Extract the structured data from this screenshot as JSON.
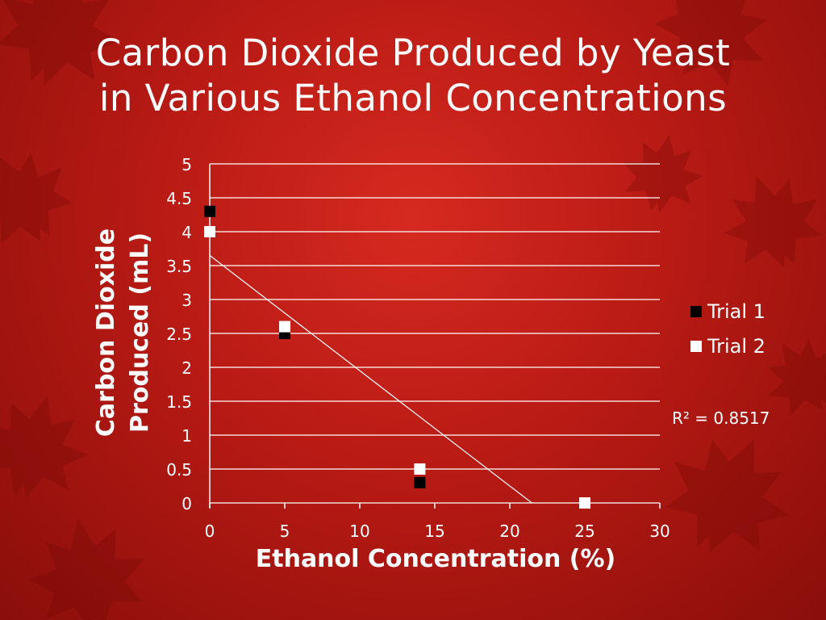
{
  "title_line1": "Carbon Dioxide Produced by Yeast",
  "title_line2": "in Various Ethanol Concentrations",
  "colors": {
    "background": "#c41e16",
    "trial1": "#000000",
    "trial2": "#ffffff",
    "text": "#ffffff"
  },
  "chart_data": {
    "type": "scatter",
    "title": "",
    "xlabel": "Ethanol Concentration (%)",
    "ylabel_line1": "Carbon Dioxide",
    "ylabel_line2": "Produced (mL)",
    "xlim": [
      0,
      30
    ],
    "ylim": [
      0,
      5
    ],
    "x_ticks": [
      0,
      5,
      10,
      15,
      20,
      25,
      30
    ],
    "y_ticks": [
      0,
      0.5,
      1,
      1.5,
      2,
      2.5,
      3,
      3.5,
      4,
      4.5,
      5
    ],
    "y_tick_labels": [
      "0",
      "0.5",
      "1",
      "1.5",
      "2",
      "2.5",
      "3",
      "3.5",
      "4",
      "4.5",
      "5"
    ],
    "grid": "horizontal",
    "legend_position": "right",
    "series": [
      {
        "name": "Trial 1",
        "x": [
          0,
          5,
          14,
          25
        ],
        "y": [
          4.3,
          2.5,
          0.3,
          0
        ]
      },
      {
        "name": "Trial 2",
        "x": [
          0,
          5,
          14,
          25
        ],
        "y": [
          4.0,
          2.6,
          0.5,
          0
        ]
      }
    ],
    "trendline": {
      "type": "linear",
      "slope": -0.17,
      "intercept": 3.65
    },
    "annotation": "R² = 0.8517"
  }
}
